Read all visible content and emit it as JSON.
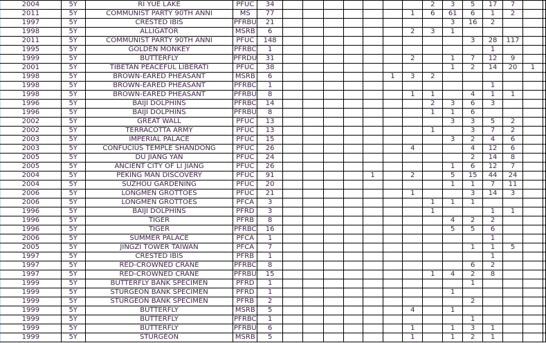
{
  "sheet": {
    "text_color": "#3b1f44",
    "grid_color": "#000000",
    "rows": [
      [
        "2004",
        "5Y",
        "RI YUE LAKE",
        "PFUC",
        "34",
        [
          "",
          "",
          "",
          "",
          "",
          "",
          "",
          "2",
          "3",
          "5",
          "17",
          "7",
          ""
        ]
      ],
      [
        "2011",
        "5Y",
        "COMMUNIST PARTY 90TH ANNI",
        "MS",
        "77",
        [
          "",
          "",
          "",
          "",
          "",
          "",
          "1",
          "6",
          "61",
          "6",
          "1",
          "2",
          ""
        ]
      ],
      [
        "1997",
        "5Y",
        "CRESTED IBIS",
        "PFRBU",
        "21",
        [
          "",
          "",
          "",
          "",
          "",
          "",
          "",
          "",
          "3",
          "16",
          "2",
          "",
          ""
        ]
      ],
      [
        "1998",
        "5Y",
        "ALLIGATOR",
        "MSRB",
        "6",
        [
          "",
          "",
          "",
          "",
          "",
          "",
          "2",
          "3",
          "1",
          "",
          "",
          "",
          ""
        ]
      ],
      [
        "2011",
        "5Y",
        "COMMUNIST PARTY 90TH ANNI",
        "PFUC",
        "148",
        [
          "",
          "",
          "",
          "",
          "",
          "",
          "",
          "",
          "",
          "3",
          "28",
          "117",
          ""
        ]
      ],
      [
        "1995",
        "5Y",
        "GOLDEN MONKEY",
        "PFRBC",
        "1",
        [
          "",
          "",
          "",
          "",
          "",
          "",
          "",
          "",
          "",
          "",
          "1",
          "",
          ""
        ]
      ],
      [
        "1999",
        "5Y",
        "BUTTERFLY",
        "PFRDU",
        "31",
        [
          "",
          "",
          "",
          "",
          "",
          "",
          "2",
          "",
          "1",
          "7",
          "12",
          "9",
          ""
        ]
      ],
      [
        "2001",
        "5Y",
        "TIBETAN PEACEFUL LIBERATI",
        "PFUC",
        "38",
        [
          "",
          "",
          "",
          "",
          "",
          "",
          "",
          "",
          "1",
          "2",
          "14",
          "20",
          "1"
        ]
      ],
      [
        "1998",
        "5Y",
        "BROWN-EARED PHEASANT",
        "MSRB",
        "6",
        [
          "",
          "",
          "",
          "",
          "",
          "1",
          "3",
          "2",
          "",
          "",
          "",
          "",
          ""
        ]
      ],
      [
        "1998",
        "5Y",
        "BROWN-EARED PHEASANT",
        "PFRBC",
        "1",
        [
          "",
          "",
          "",
          "",
          "",
          "",
          "",
          "",
          "",
          "",
          "1",
          "",
          ""
        ]
      ],
      [
        "1998",
        "5Y",
        "BROWN-EARED PHEASANT",
        "PFRBU",
        "8",
        [
          "",
          "",
          "",
          "",
          "",
          "",
          "1",
          "1",
          "",
          "4",
          "1",
          "1",
          ""
        ]
      ],
      [
        "1996",
        "5Y",
        "BAIJI DOLPHINS",
        "PFRBC",
        "14",
        [
          "",
          "",
          "",
          "",
          "",
          "",
          "",
          "2",
          "3",
          "6",
          "3",
          "",
          ""
        ]
      ],
      [
        "1996",
        "5Y",
        "BAIJI DOLPHINS",
        "PFRBU",
        "8",
        [
          "",
          "",
          "",
          "",
          "",
          "",
          "",
          "1",
          "1",
          "6",
          "",
          "",
          ""
        ]
      ],
      [
        "2002",
        "5Y",
        "GREAT WALL",
        "PFUC",
        "13",
        [
          "",
          "",
          "",
          "",
          "",
          "",
          "",
          "",
          "3",
          "3",
          "5",
          "2",
          ""
        ]
      ],
      [
        "2002",
        "5Y",
        "TERRACOTTA ARMY",
        "PFUC",
        "13",
        [
          "",
          "",
          "",
          "",
          "",
          "",
          "",
          "1",
          "",
          "3",
          "7",
          "2",
          ""
        ]
      ],
      [
        "2003",
        "5Y",
        "IMPERIAL PALACE",
        "PFUC",
        "15",
        [
          "",
          "",
          "",
          "",
          "",
          "",
          "",
          "",
          "3",
          "2",
          "4",
          "6",
          ""
        ]
      ],
      [
        "2003",
        "5Y",
        "CONFUCIUS TEMPLE SHANDONG",
        "PFUC",
        "26",
        [
          "",
          "",
          "",
          "",
          "",
          "",
          "4",
          "",
          "",
          "4",
          "12",
          "6",
          ""
        ]
      ],
      [
        "2005",
        "5Y",
        "DU JIANG YAN",
        "PFUC",
        "24",
        [
          "",
          "",
          "",
          "",
          "",
          "",
          "",
          "",
          "",
          "2",
          "14",
          "8",
          ""
        ]
      ],
      [
        "2005",
        "5Y",
        "ANCIENT CITY OF LI JIANG",
        "PFUC",
        "26",
        [
          "",
          "",
          "",
          "",
          "",
          "",
          "",
          "",
          "1",
          "6",
          "12",
          "7",
          ""
        ]
      ],
      [
        "2004",
        "5Y",
        "PEKING MAN DISCOVERY",
        "PFUC",
        "91",
        [
          "",
          "",
          "",
          "",
          "1",
          "",
          "2",
          "",
          "5",
          "15",
          "44",
          "24",
          ""
        ]
      ],
      [
        "2004",
        "5Y",
        "SUZHOU GARDENING",
        "PFUC",
        "20",
        [
          "",
          "",
          "",
          "",
          "",
          "",
          "",
          "",
          "1",
          "1",
          "7",
          "11",
          ""
        ]
      ],
      [
        "2006",
        "5Y",
        "LONGMEN GROTTOES",
        "PFUC",
        "21",
        [
          "",
          "",
          "",
          "",
          "",
          "",
          "1",
          "",
          "",
          "3",
          "14",
          "3",
          ""
        ]
      ],
      [
        "2006",
        "5Y",
        "LONGMEN GROTTOES",
        "PFCA",
        "3",
        [
          "",
          "",
          "",
          "",
          "",
          "",
          "",
          "1",
          "1",
          "1",
          "",
          "",
          ""
        ]
      ],
      [
        "1996",
        "5Y",
        "BAIJI DOLPHINS",
        "PFRD",
        "3",
        [
          "",
          "",
          "",
          "",
          "",
          "",
          "",
          "1",
          "",
          "",
          "1",
          "1",
          ""
        ]
      ],
      [
        "1996",
        "5Y",
        "TIGER",
        "PFRB",
        "8",
        [
          "",
          "",
          "",
          "",
          "",
          "",
          "",
          "",
          "4",
          "2",
          "2",
          "",
          ""
        ]
      ],
      [
        "1996",
        "5Y",
        "TIGER",
        "PFRBC",
        "16",
        [
          "",
          "",
          "",
          "",
          "",
          "",
          "",
          "",
          "5",
          "5",
          "6",
          "",
          ""
        ]
      ],
      [
        "2006",
        "5Y",
        "SUMMER PALACE",
        "PFCA",
        "1",
        [
          "",
          "",
          "",
          "",
          "",
          "",
          "",
          "",
          "",
          "",
          "1",
          "",
          ""
        ]
      ],
      [
        "2005",
        "5Y",
        "JINGZI TOWER TAIWAN",
        "PFCA",
        "7",
        [
          "",
          "",
          "",
          "",
          "",
          "",
          "",
          "",
          "",
          "1",
          "1",
          "5",
          ""
        ]
      ],
      [
        "1997",
        "5Y",
        "CRESTED IBIS",
        "PFRB",
        "1",
        [
          "",
          "",
          "",
          "",
          "",
          "",
          "",
          "",
          "",
          "",
          "1",
          "",
          ""
        ]
      ],
      [
        "1997",
        "5Y",
        "RED-CROWNED CRANE",
        "PFRBC",
        "8",
        [
          "",
          "",
          "",
          "",
          "",
          "",
          "",
          "",
          "",
          "6",
          "2",
          "",
          ""
        ]
      ],
      [
        "1997",
        "5Y",
        "RED-CROWNED CRANE",
        "PFRBU",
        "15",
        [
          "",
          "",
          "",
          "",
          "",
          "",
          "",
          "1",
          "4",
          "2",
          "8",
          "",
          ""
        ]
      ],
      [
        "1999",
        "5Y",
        "BUTTERFLY BANK SPECIMEN",
        "PFRD",
        "1",
        [
          "",
          "",
          "",
          "",
          "",
          "",
          "",
          "",
          "",
          "1",
          "",
          "",
          ""
        ]
      ],
      [
        "1999",
        "5Y",
        "STURGEON BANK SPECIMEN",
        "PFRD",
        "1",
        [
          "",
          "",
          "",
          "",
          "",
          "",
          "",
          "",
          "1",
          "",
          "",
          "",
          ""
        ]
      ],
      [
        "1999",
        "5Y",
        "STURGEON BANK SPECIMEN",
        "PFRB",
        "2",
        [
          "",
          "",
          "",
          "",
          "",
          "",
          "",
          "",
          "",
          "2",
          "",
          "",
          ""
        ]
      ],
      [
        "1999",
        "5Y",
        "BUTTERFLY",
        "MSRB",
        "5",
        [
          "",
          "",
          "",
          "",
          "",
          "",
          "4",
          "",
          "1",
          "",
          "",
          "",
          ""
        ]
      ],
      [
        "1999",
        "5Y",
        "BUTTERFLY",
        "PFRBC",
        "1",
        [
          "",
          "",
          "",
          "",
          "",
          "",
          "",
          "",
          "",
          "1",
          "",
          "",
          ""
        ]
      ],
      [
        "1999",
        "5Y",
        "BUTTERFLY",
        "PFRBU",
        "6",
        [
          "",
          "",
          "",
          "",
          "",
          "",
          "1",
          "",
          "1",
          "3",
          "1",
          "",
          ""
        ]
      ],
      [
        "1999",
        "5Y",
        "STURGEON",
        "MSRB",
        "5",
        [
          "",
          "",
          "",
          "",
          "",
          "",
          "1",
          "",
          "1",
          "2",
          "1",
          "",
          ""
        ]
      ]
    ]
  }
}
